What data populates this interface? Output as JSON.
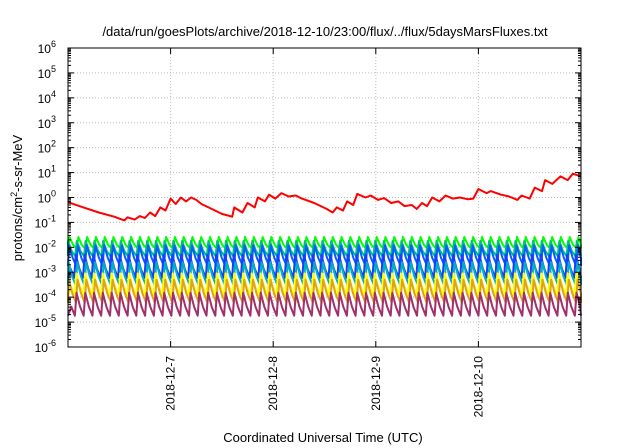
{
  "chart_data": {
    "type": "line",
    "title": "/data/run/goesPlots/archive/2018-12-10/23:00/flux/../flux/5daysMarsFluxes.txt",
    "xlabel": "Coordinated Universal Time (UTC)",
    "ylabel": {
      "prefix": "protons/cm",
      "sup": "2",
      "suffix": "-s-sr-MeV"
    },
    "yscale": "log",
    "ylim": [
      1e-06,
      1000000.0
    ],
    "ytick_exponents": [
      -6,
      -5,
      -4,
      -3,
      -2,
      -1,
      0,
      1,
      2,
      3,
      4,
      5,
      6
    ],
    "ytick_base": "10",
    "xlim": [
      0,
      5
    ],
    "x_unit": "days from 2018-12-06 00:00 UTC",
    "xtick_positions": [
      1,
      2,
      3,
      4
    ],
    "xtick_labels": [
      "2018-12-7",
      "2018-12-8",
      "2018-12-9",
      "2018-12-10"
    ],
    "grid": true,
    "series": [
      {
        "color": "#ff0000",
        "points": [
          [
            0.0,
            0.65
          ],
          [
            0.15,
            0.4
          ],
          [
            0.3,
            0.25
          ],
          [
            0.45,
            0.17
          ],
          [
            0.55,
            0.12
          ],
          [
            0.58,
            0.16
          ],
          [
            0.65,
            0.13
          ],
          [
            0.7,
            0.18
          ],
          [
            0.75,
            0.15
          ],
          [
            0.8,
            0.25
          ],
          [
            0.85,
            0.18
          ],
          [
            0.9,
            0.4
          ],
          [
            0.95,
            0.3
          ],
          [
            1.0,
            0.9
          ],
          [
            1.05,
            0.55
          ],
          [
            1.1,
            1.0
          ],
          [
            1.15,
            0.7
          ],
          [
            1.2,
            1.0
          ],
          [
            1.25,
            0.8
          ],
          [
            1.3,
            0.55
          ],
          [
            1.4,
            0.35
          ],
          [
            1.5,
            0.22
          ],
          [
            1.6,
            0.17
          ],
          [
            1.62,
            0.4
          ],
          [
            1.7,
            0.25
          ],
          [
            1.75,
            0.6
          ],
          [
            1.82,
            0.4
          ],
          [
            1.85,
            1.0
          ],
          [
            1.92,
            0.7
          ],
          [
            1.96,
            1.3
          ],
          [
            2.02,
            0.9
          ],
          [
            2.08,
            1.5
          ],
          [
            2.15,
            1.1
          ],
          [
            2.22,
            1.2
          ],
          [
            2.28,
            0.9
          ],
          [
            2.4,
            0.6
          ],
          [
            2.52,
            0.35
          ],
          [
            2.58,
            0.25
          ],
          [
            2.62,
            0.4
          ],
          [
            2.68,
            0.3
          ],
          [
            2.72,
            0.7
          ],
          [
            2.78,
            0.5
          ],
          [
            2.82,
            1.4
          ],
          [
            2.9,
            1.0
          ],
          [
            2.95,
            1.2
          ],
          [
            3.02,
            0.8
          ],
          [
            3.08,
            0.95
          ],
          [
            3.15,
            0.6
          ],
          [
            3.22,
            0.7
          ],
          [
            3.28,
            0.45
          ],
          [
            3.35,
            0.5
          ],
          [
            3.4,
            0.35
          ],
          [
            3.45,
            0.6
          ],
          [
            3.5,
            0.45
          ],
          [
            3.55,
            1.0
          ],
          [
            3.62,
            0.7
          ],
          [
            3.68,
            1.2
          ],
          [
            3.75,
            0.9
          ],
          [
            3.82,
            1.0
          ],
          [
            3.9,
            0.85
          ],
          [
            3.95,
            0.9
          ],
          [
            4.0,
            2.2
          ],
          [
            4.08,
            1.5
          ],
          [
            4.12,
            1.8
          ],
          [
            4.22,
            1.3
          ],
          [
            4.3,
            1.1
          ],
          [
            4.38,
            0.8
          ],
          [
            4.42,
            1.2
          ],
          [
            4.5,
            0.9
          ],
          [
            4.55,
            2.5
          ],
          [
            4.62,
            1.8
          ],
          [
            4.65,
            5.0
          ],
          [
            4.72,
            3.5
          ],
          [
            4.8,
            7.0
          ],
          [
            4.87,
            5.0
          ],
          [
            4.92,
            9.0
          ],
          [
            5.0,
            7.0
          ]
        ]
      },
      {
        "color": "#00ff00",
        "low": 0.009,
        "high": 0.026,
        "phase": 0.0
      },
      {
        "color": "#00c080",
        "low": 0.0045,
        "high": 0.018,
        "phase": 0.015
      },
      {
        "color": "#0060ff",
        "low": 0.0018,
        "high": 0.012,
        "phase": 0.005
      },
      {
        "color": "#1a3cff",
        "low": 0.0006,
        "high": 0.005,
        "phase": 0.025
      },
      {
        "color": "#00b0c0",
        "low": 0.0003,
        "high": 0.0025,
        "phase": 0.01
      },
      {
        "color": "#ffff00",
        "low": 0.00012,
        "high": 0.0009,
        "phase": 0.02
      },
      {
        "color": "#e0a020",
        "low": 6e-05,
        "high": 0.0005,
        "phase": 0.008
      },
      {
        "color": "#a0306a",
        "low": 1.8e-05,
        "high": 0.00015,
        "phase": 0.018
      }
    ]
  }
}
